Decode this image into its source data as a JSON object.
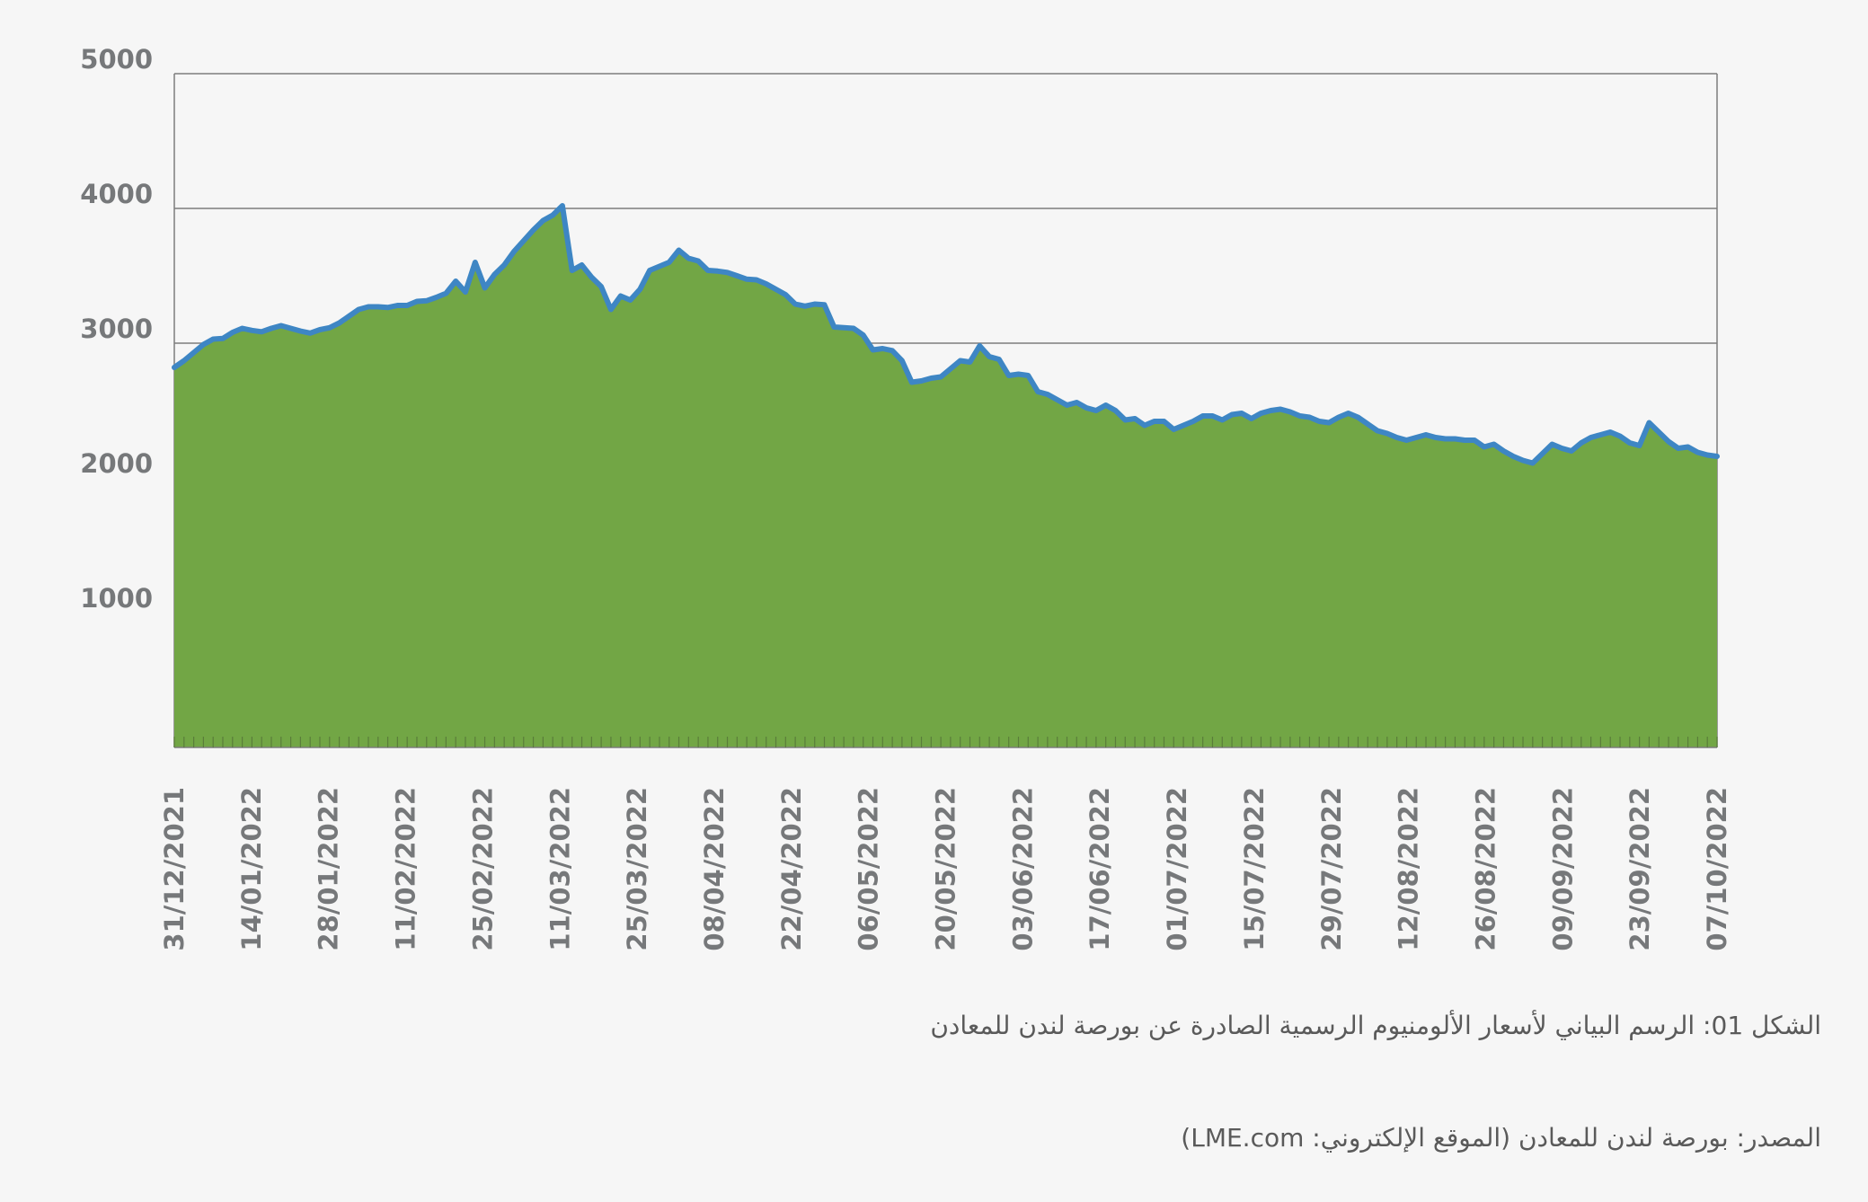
{
  "chart_data": {
    "type": "area",
    "title": "",
    "xlabel": "",
    "ylabel": "",
    "ylim": [
      0,
      5000
    ],
    "yticks": [
      1000,
      2000,
      3000,
      4000,
      5000
    ],
    "ytick_labels": [
      "1000",
      "2000",
      "3000",
      "4000",
      "5000"
    ],
    "x_tick_labels": [
      "31/12/2021",
      "14/01/2022",
      "28/01/2022",
      "11/02/2022",
      "25/02/2022",
      "11/03/2022",
      "25/03/2022",
      "08/04/2022",
      "22/04/2022",
      "06/05/2022",
      "20/05/2022",
      "03/06/2022",
      "17/06/2022",
      "01/07/2022",
      "15/07/2022",
      "29/07/2022",
      "12/08/2022",
      "26/08/2022",
      "09/09/2022",
      "23/09/2022",
      "07/10/2022"
    ],
    "grid": true,
    "fill_color": "#72a645",
    "line_color": "#3e86c4",
    "series": [
      {
        "values": [
          2820,
          2870,
          2930,
          2990,
          3030,
          3035,
          3080,
          3110,
          3095,
          3085,
          3110,
          3130,
          3110,
          3090,
          3075,
          3100,
          3115,
          3150,
          3200,
          3250,
          3270,
          3270,
          3265,
          3280,
          3280,
          3310,
          3315,
          3340,
          3370,
          3460,
          3380,
          3600,
          3410,
          3510,
          3580,
          3680,
          3760,
          3840,
          3910,
          3950,
          4020,
          3540,
          3580,
          3490,
          3420,
          3250,
          3350,
          3320,
          3400,
          3540,
          3570,
          3600,
          3690,
          3630,
          3610,
          3540,
          3535,
          3525,
          3500,
          3475,
          3470,
          3440,
          3400,
          3360,
          3290,
          3275,
          3290,
          3285,
          3120,
          3115,
          3110,
          3060,
          2950,
          2960,
          2945,
          2870,
          2710,
          2720,
          2740,
          2750,
          2810,
          2870,
          2860,
          2980,
          2900,
          2880,
          2760,
          2770,
          2760,
          2640,
          2620,
          2580,
          2540,
          2560,
          2520,
          2500,
          2540,
          2500,
          2430,
          2440,
          2390,
          2420,
          2420,
          2360,
          2390,
          2420,
          2460,
          2460,
          2430,
          2470,
          2480,
          2440,
          2480,
          2500,
          2510,
          2490,
          2460,
          2450,
          2420,
          2410,
          2450,
          2480,
          2450,
          2400,
          2350,
          2330,
          2300,
          2280,
          2300,
          2320,
          2300,
          2290,
          2290,
          2280,
          2280,
          2230,
          2250,
          2200,
          2160,
          2130,
          2110,
          2180,
          2250,
          2220,
          2200,
          2260,
          2300,
          2320,
          2340,
          2310,
          2260,
          2240,
          2410,
          2340,
          2270,
          2220,
          2230,
          2190,
          2170,
          2160
        ]
      }
    ]
  },
  "captions": {
    "figure": "الشكل 01: الرسم البياني لأسعار الألومنيوم الرسمية الصادرة عن بورصة لندن للمعادن",
    "source": "المصدر: بورصة لندن للمعادن (الموقع الإلكتروني: LME.com)"
  }
}
